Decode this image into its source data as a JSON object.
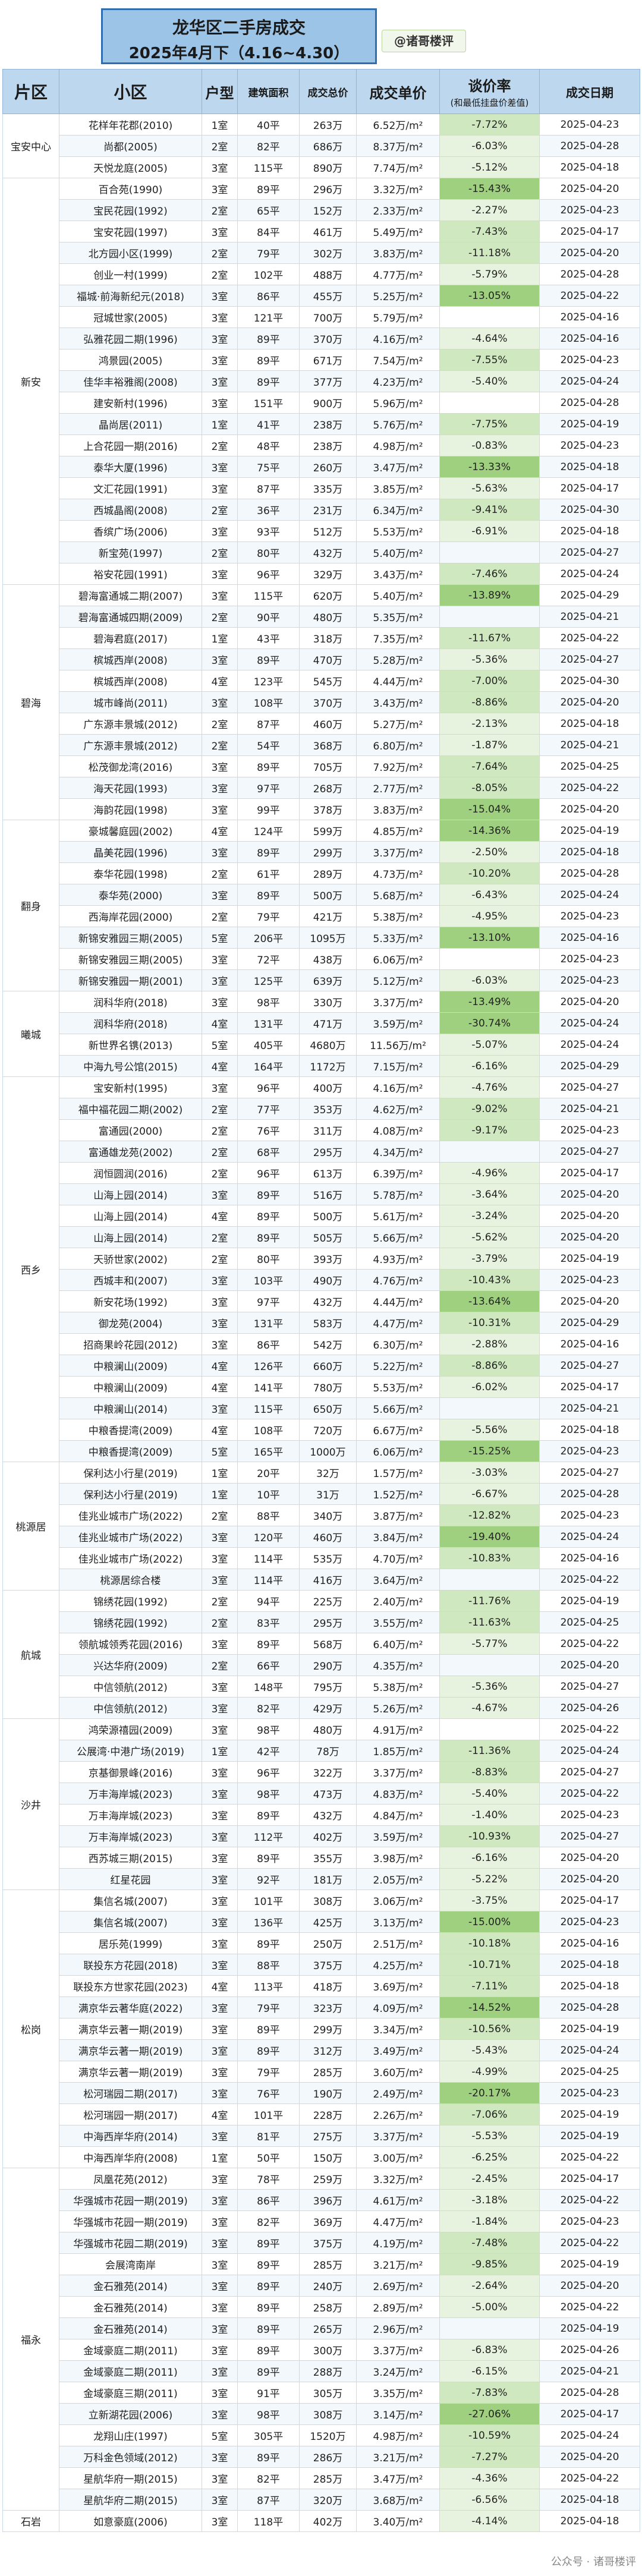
{
  "header": {
    "title": "龙华区二手房成交",
    "subtitle": "2025年4月下（4.16~4.30）",
    "author": "@诸哥楼评"
  },
  "columns": {
    "district": "片区",
    "community": "小区",
    "layout": "户型",
    "area": "建筑面积",
    "total": "成交总价",
    "unit_price": "成交单价",
    "ratio": "谈价率",
    "ratio_sub": "(和最低挂盘价差值)",
    "date": "成交日期"
  },
  "colors": {
    "header_bg": "#bcd7ee",
    "title_bg": "#9bc4e6",
    "title_border": "#2f6fae",
    "ratio_high": "#9fd07f",
    "ratio_mid": "#cfe8bf",
    "ratio_low": "#e8f3df"
  },
  "groups": [
    {
      "district": "宝安中心",
      "rows": [
        [
          "花样年花郡(2010)",
          "1室",
          "40平",
          "263万",
          "6.52万/m²",
          "-7.72%",
          "2025-04-23"
        ],
        [
          "尚都(2005)",
          "2室",
          "82平",
          "686万",
          "8.37万/m²",
          "-6.03%",
          "2025-04-28"
        ],
        [
          "天悦龙庭(2005)",
          "3室",
          "115平",
          "890万",
          "7.74万/m²",
          "-5.12%",
          "2025-04-18"
        ]
      ]
    },
    {
      "district": "新安",
      "rows": [
        [
          "百合苑(1990)",
          "3室",
          "89平",
          "296万",
          "3.32万/m²",
          "-15.43%",
          "2025-04-20"
        ],
        [
          "宝民花园(1992)",
          "2室",
          "65平",
          "152万",
          "2.33万/m²",
          "-2.27%",
          "2025-04-23"
        ],
        [
          "宝安花园(1997)",
          "3室",
          "84平",
          "461万",
          "5.49万/m²",
          "-7.43%",
          "2025-04-17"
        ],
        [
          "北方园小区(1999)",
          "2室",
          "79平",
          "302万",
          "3.83万/m²",
          "-11.18%",
          "2025-04-20"
        ],
        [
          "创业一村(1999)",
          "2室",
          "102平",
          "488万",
          "4.77万/m²",
          "-5.79%",
          "2025-04-28"
        ],
        [
          "福城·前海新纪元(2018)",
          "3室",
          "86平",
          "455万",
          "5.25万/m²",
          "-13.05%",
          "2025-04-22"
        ],
        [
          "冠城世家(2005)",
          "3室",
          "121平",
          "700万",
          "5.79万/m²",
          "",
          "2025-04-16"
        ],
        [
          "弘雅花园二期(1996)",
          "3室",
          "89平",
          "370万",
          "4.16万/m²",
          "-4.64%",
          "2025-04-16"
        ],
        [
          "鸿景园(2005)",
          "3室",
          "89平",
          "671万",
          "7.54万/m²",
          "-7.55%",
          "2025-04-23"
        ],
        [
          "佳华丰裕雅阁(2008)",
          "3室",
          "89平",
          "377万",
          "4.23万/m²",
          "-5.40%",
          "2025-04-24"
        ],
        [
          "建安新村(1996)",
          "3室",
          "151平",
          "900万",
          "5.96万/m²",
          "",
          "2025-04-28"
        ],
        [
          "晶尚居(2011)",
          "1室",
          "41平",
          "238万",
          "5.76万/m²",
          "-7.75%",
          "2025-04-19"
        ],
        [
          "上合花园一期(2016)",
          "2室",
          "48平",
          "238万",
          "4.98万/m²",
          "-0.83%",
          "2025-04-23"
        ],
        [
          "泰华大厦(1996)",
          "3室",
          "75平",
          "260万",
          "3.47万/m²",
          "-13.33%",
          "2025-04-18"
        ],
        [
          "文汇花园(1991)",
          "3室",
          "87平",
          "335万",
          "3.85万/m²",
          "-5.63%",
          "2025-04-17"
        ],
        [
          "西城晶阁(2008)",
          "2室",
          "36平",
          "231万",
          "6.34万/m²",
          "-9.41%",
          "2025-04-30"
        ],
        [
          "香缤广场(2006)",
          "3室",
          "93平",
          "512万",
          "5.53万/m²",
          "-6.91%",
          "2025-04-18"
        ],
        [
          "新宝苑(1997)",
          "2室",
          "80平",
          "432万",
          "5.40万/m²",
          "",
          "2025-04-27"
        ],
        [
          "裕安花园(1991)",
          "3室",
          "96平",
          "329万",
          "3.43万/m²",
          "-7.46%",
          "2025-04-24"
        ]
      ]
    },
    {
      "district": "碧海",
      "rows": [
        [
          "碧海富通城二期(2007)",
          "3室",
          "115平",
          "620万",
          "5.40万/m²",
          "-13.89%",
          "2025-04-29"
        ],
        [
          "碧海富通城四期(2009)",
          "2室",
          "90平",
          "480万",
          "5.35万/m²",
          "",
          "2025-04-21"
        ],
        [
          "碧海君庭(2017)",
          "1室",
          "43平",
          "318万",
          "7.35万/m²",
          "-11.67%",
          "2025-04-22"
        ],
        [
          "槟城西岸(2008)",
          "3室",
          "89平",
          "470万",
          "5.28万/m²",
          "-5.36%",
          "2025-04-27"
        ],
        [
          "槟城西岸(2008)",
          "4室",
          "123平",
          "545万",
          "4.44万/m²",
          "-7.00%",
          "2025-04-30"
        ],
        [
          "城市峰尚(2011)",
          "3室",
          "108平",
          "370万",
          "3.43万/m²",
          "-8.86%",
          "2025-04-20"
        ],
        [
          "广东源丰景城(2012)",
          "2室",
          "87平",
          "460万",
          "5.27万/m²",
          "-2.13%",
          "2025-04-18"
        ],
        [
          "广东源丰景城(2012)",
          "2室",
          "54平",
          "368万",
          "6.80万/m²",
          "-1.87%",
          "2025-04-21"
        ],
        [
          "松茂御龙湾(2016)",
          "3室",
          "89平",
          "705万",
          "7.92万/m²",
          "-7.64%",
          "2025-04-25"
        ],
        [
          "海天花园(1993)",
          "3室",
          "97平",
          "268万",
          "2.77万/m²",
          "-8.05%",
          "2025-04-22"
        ],
        [
          "海韵花园(1998)",
          "3室",
          "99平",
          "378万",
          "3.83万/m²",
          "-15.04%",
          "2025-04-20"
        ]
      ]
    },
    {
      "district": "翻身",
      "rows": [
        [
          "豪城馨庭园(2002)",
          "4室",
          "124平",
          "599万",
          "4.85万/m²",
          "-14.36%",
          "2025-04-19"
        ],
        [
          "晶美花园(1996)",
          "3室",
          "89平",
          "299万",
          "3.37万/m²",
          "-2.50%",
          "2025-04-18"
        ],
        [
          "泰华花园(1998)",
          "2室",
          "61平",
          "289万",
          "4.73万/m²",
          "-10.20%",
          "2025-04-28"
        ],
        [
          "泰华苑(2000)",
          "3室",
          "89平",
          "500万",
          "5.68万/m²",
          "-6.43%",
          "2025-04-24"
        ],
        [
          "西海岸花园(2000)",
          "2室",
          "79平",
          "421万",
          "5.38万/m²",
          "-4.95%",
          "2025-04-23"
        ],
        [
          "新锦安雅园三期(2005)",
          "5室",
          "206平",
          "1095万",
          "5.33万/m²",
          "-13.10%",
          "2025-04-16"
        ],
        [
          "新锦安雅园三期(2005)",
          "3室",
          "72平",
          "438万",
          "6.06万/m²",
          "",
          "2025-04-23"
        ],
        [
          "新锦安雅园一期(2001)",
          "3室",
          "125平",
          "639万",
          "5.12万/m²",
          "-6.03%",
          "2025-04-23"
        ]
      ]
    },
    {
      "district": "曦城",
      "rows": [
        [
          "润科华府(2018)",
          "3室",
          "98平",
          "330万",
          "3.37万/m²",
          "-13.49%",
          "2025-04-20"
        ],
        [
          "润科华府(2018)",
          "4室",
          "131平",
          "471万",
          "3.59万/m²",
          "-30.74%",
          "2025-04-24"
        ],
        [
          "新世界名镌(2013)",
          "5室",
          "405平",
          "4680万",
          "11.56万/m²",
          "-5.07%",
          "2025-04-24"
        ],
        [
          "中海九号公馆(2015)",
          "4室",
          "164平",
          "1172万",
          "7.15万/m²",
          "-6.16%",
          "2025-04-29"
        ]
      ]
    },
    {
      "district": "西乡",
      "rows": [
        [
          "宝安新村(1995)",
          "3室",
          "96平",
          "400万",
          "4.16万/m²",
          "-4.76%",
          "2025-04-27"
        ],
        [
          "福中福花园二期(2002)",
          "2室",
          "77平",
          "353万",
          "4.62万/m²",
          "-9.02%",
          "2025-04-21"
        ],
        [
          "富通园(2000)",
          "2室",
          "76平",
          "311万",
          "4.08万/m²",
          "-9.17%",
          "2025-04-23"
        ],
        [
          "富通雄龙苑(2002)",
          "2室",
          "68平",
          "295万",
          "4.34万/m²",
          "",
          "2025-04-27"
        ],
        [
          "润恒圆润(2016)",
          "2室",
          "96平",
          "613万",
          "6.39万/m²",
          "-4.96%",
          "2025-04-17"
        ],
        [
          "山海上园(2014)",
          "3室",
          "89平",
          "516万",
          "5.78万/m²",
          "-3.64%",
          "2025-04-20"
        ],
        [
          "山海上园(2014)",
          "4室",
          "89平",
          "500万",
          "5.61万/m²",
          "-3.24%",
          "2025-04-20"
        ],
        [
          "山海上园(2014)",
          "2室",
          "89平",
          "505万",
          "5.66万/m²",
          "-5.62%",
          "2025-04-20"
        ],
        [
          "天骄世家(2002)",
          "2室",
          "80平",
          "393万",
          "4.93万/m²",
          "-3.79%",
          "2025-04-19"
        ],
        [
          "西城丰和(2007)",
          "3室",
          "103平",
          "490万",
          "4.76万/m²",
          "-10.43%",
          "2025-04-23"
        ],
        [
          "新安花场(1992)",
          "3室",
          "97平",
          "432万",
          "4.44万/m²",
          "-13.64%",
          "2025-04-20"
        ],
        [
          "御龙苑(2004)",
          "3室",
          "131平",
          "583万",
          "4.47万/m²",
          "-10.31%",
          "2025-04-29"
        ],
        [
          "招商果岭花园(2012)",
          "3室",
          "86平",
          "542万",
          "6.30万/m²",
          "-2.88%",
          "2025-04-16"
        ],
        [
          "中粮澜山(2009)",
          "4室",
          "126平",
          "660万",
          "5.22万/m²",
          "-8.86%",
          "2025-04-27"
        ],
        [
          "中粮澜山(2009)",
          "4室",
          "141平",
          "780万",
          "5.53万/m²",
          "-6.02%",
          "2025-04-17"
        ],
        [
          "中粮澜山(2014)",
          "3室",
          "115平",
          "650万",
          "5.66万/m²",
          "",
          "2025-04-21"
        ],
        [
          "中粮香提湾(2009)",
          "4室",
          "108平",
          "720万",
          "6.67万/m²",
          "-5.56%",
          "2025-04-18"
        ],
        [
          "中粮香提湾(2009)",
          "5室",
          "165平",
          "1000万",
          "6.06万/m²",
          "-15.25%",
          "2025-04-23"
        ]
      ]
    },
    {
      "district": "桃源居",
      "rows": [
        [
          "保利达小行星(2019)",
          "1室",
          "20平",
          "32万",
          "1.57万/m²",
          "-3.03%",
          "2025-04-27"
        ],
        [
          "保利达小行星(2019)",
          "1室",
          "10平",
          "31万",
          "1.52万/m²",
          "-6.67%",
          "2025-04-28"
        ],
        [
          "佳兆业城市广场(2022)",
          "2室",
          "88平",
          "340万",
          "3.87万/m²",
          "-12.82%",
          "2025-04-23"
        ],
        [
          "佳兆业城市广场(2022)",
          "3室",
          "120平",
          "460万",
          "3.84万/m²",
          "-19.40%",
          "2025-04-24"
        ],
        [
          "佳兆业城市广场(2022)",
          "3室",
          "114平",
          "535万",
          "4.70万/m²",
          "-10.83%",
          "2025-04-16"
        ],
        [
          "桃源居综合楼",
          "3室",
          "114平",
          "416万",
          "3.64万/m²",
          "",
          "2025-04-22"
        ]
      ]
    },
    {
      "district": "航城",
      "rows": [
        [
          "锦绣花园(1992)",
          "2室",
          "94平",
          "225万",
          "2.40万/m²",
          "-11.76%",
          "2025-04-19"
        ],
        [
          "锦绣花园(1992)",
          "2室",
          "83平",
          "295万",
          "3.55万/m²",
          "-11.63%",
          "2025-04-25"
        ],
        [
          "领航城领秀花园(2016)",
          "3室",
          "89平",
          "568万",
          "6.40万/m²",
          "-5.77%",
          "2025-04-22"
        ],
        [
          "兴达华府(2009)",
          "2室",
          "66平",
          "290万",
          "4.35万/m²",
          "",
          "2025-04-20"
        ],
        [
          "中信领航(2012)",
          "3室",
          "148平",
          "795万",
          "5.38万/m²",
          "-5.36%",
          "2025-04-27"
        ],
        [
          "中信领航(2012)",
          "3室",
          "82平",
          "429万",
          "5.26万/m²",
          "-4.67%",
          "2025-04-26"
        ]
      ]
    },
    {
      "district": "沙井",
      "rows": [
        [
          "鸿荣源禧园(2009)",
          "3室",
          "98平",
          "480万",
          "4.91万/m²",
          "",
          "2025-04-22"
        ],
        [
          "公展湾·中港广场(2019)",
          "1室",
          "42平",
          "78万",
          "1.85万/m²",
          "-11.36%",
          "2025-04-24"
        ],
        [
          "京基御景峰(2016)",
          "3室",
          "96平",
          "322万",
          "3.37万/m²",
          "-8.83%",
          "2025-04-27"
        ],
        [
          "万丰海岸城(2023)",
          "3室",
          "98平",
          "473万",
          "4.83万/m²",
          "-5.40%",
          "2025-04-22"
        ],
        [
          "万丰海岸城(2023)",
          "3室",
          "89平",
          "432万",
          "4.84万/m²",
          "-1.40%",
          "2025-04-23"
        ],
        [
          "万丰海岸城(2023)",
          "3室",
          "112平",
          "402万",
          "3.59万/m²",
          "-10.93%",
          "2025-04-27"
        ],
        [
          "西苏城三期(2015)",
          "3室",
          "89平",
          "355万",
          "3.98万/m²",
          "-6.16%",
          "2025-04-20"
        ],
        [
          "红星花园",
          "3室",
          "92平",
          "181万",
          "2.05万/m²",
          "-5.22%",
          "2025-04-20"
        ]
      ]
    },
    {
      "district": "松岗",
      "rows": [
        [
          "集信名城(2007)",
          "3室",
          "101平",
          "308万",
          "3.06万/m²",
          "-3.75%",
          "2025-04-17"
        ],
        [
          "集信名城(2007)",
          "3室",
          "136平",
          "425万",
          "3.13万/m²",
          "-15.00%",
          "2025-04-23"
        ],
        [
          "居乐苑(1999)",
          "3室",
          "89平",
          "250万",
          "2.51万/m²",
          "-10.18%",
          "2025-04-16"
        ],
        [
          "联投东方花园(2018)",
          "3室",
          "88平",
          "375万",
          "4.25万/m²",
          "-10.71%",
          "2025-04-18"
        ],
        [
          "联投东方世家花园(2023)",
          "4室",
          "113平",
          "418万",
          "3.69万/m²",
          "-7.11%",
          "2025-04-18"
        ],
        [
          "满京华云著华庭(2022)",
          "3室",
          "79平",
          "323万",
          "4.09万/m²",
          "-14.52%",
          "2025-04-28"
        ],
        [
          "满京华云著一期(2019)",
          "3室",
          "89平",
          "299万",
          "3.34万/m²",
          "-10.56%",
          "2025-04-19"
        ],
        [
          "满京华云著一期(2019)",
          "3室",
          "89平",
          "312万",
          "3.49万/m²",
          "-5.43%",
          "2025-04-24"
        ],
        [
          "满京华云著一期(2019)",
          "3室",
          "79平",
          "285万",
          "3.60万/m²",
          "-4.99%",
          "2025-04-25"
        ],
        [
          "松河瑞园二期(2017)",
          "3室",
          "76平",
          "190万",
          "2.49万/m²",
          "-20.17%",
          "2025-04-23"
        ],
        [
          "松河瑞园一期(2017)",
          "4室",
          "101平",
          "228万",
          "2.26万/m²",
          "-7.06%",
          "2025-04-19"
        ],
        [
          "中海西岸华府(2014)",
          "3室",
          "81平",
          "275万",
          "3.37万/m²",
          "-5.53%",
          "2025-04-19"
        ],
        [
          "中海西岸华府(2008)",
          "1室",
          "50平",
          "150万",
          "3.00万/m²",
          "-6.25%",
          "2025-04-22"
        ]
      ]
    },
    {
      "district": "福永",
      "rows": [
        [
          "凤凰花苑(2012)",
          "3室",
          "78平",
          "259万",
          "3.32万/m²",
          "-2.45%",
          "2025-04-17"
        ],
        [
          "华强城市花园一期(2019)",
          "3室",
          "86平",
          "396万",
          "4.61万/m²",
          "-3.18%",
          "2025-04-22"
        ],
        [
          "华强城市花园一期(2019)",
          "3室",
          "82平",
          "369万",
          "4.47万/m²",
          "-1.84%",
          "2025-04-23"
        ],
        [
          "华强城市花园二期(2019)",
          "3室",
          "89平",
          "375万",
          "4.19万/m²",
          "-7.48%",
          "2025-04-22"
        ],
        [
          "会展湾南岸",
          "3室",
          "89平",
          "285万",
          "3.21万/m²",
          "-9.85%",
          "2025-04-19"
        ],
        [
          "金石雅苑(2014)",
          "3室",
          "89平",
          "240万",
          "2.69万/m²",
          "-2.64%",
          "2025-04-20"
        ],
        [
          "金石雅苑(2014)",
          "3室",
          "89平",
          "258万",
          "2.89万/m²",
          "-5.00%",
          "2025-04-22"
        ],
        [
          "金石雅苑(2014)",
          "3室",
          "89平",
          "265万",
          "2.96万/m²",
          "",
          "2025-04-19"
        ],
        [
          "金域豪庭二期(2011)",
          "3室",
          "89平",
          "300万",
          "3.37万/m²",
          "-6.83%",
          "2025-04-26"
        ],
        [
          "金域豪庭二期(2011)",
          "3室",
          "89平",
          "288万",
          "3.24万/m²",
          "-6.15%",
          "2025-04-21"
        ],
        [
          "金域豪庭三期(2011)",
          "3室",
          "91平",
          "305万",
          "3.35万/m²",
          "-7.83%",
          "2025-04-28"
        ],
        [
          "立新湖花园(2006)",
          "3室",
          "98平",
          "308万",
          "3.14万/m²",
          "-27.06%",
          "2025-04-17"
        ],
        [
          "龙翔山庄(1997)",
          "5室",
          "305平",
          "1520万",
          "4.98万/m²",
          "-10.59%",
          "2025-04-24"
        ],
        [
          "万科金色领域(2012)",
          "3室",
          "89平",
          "286万",
          "3.21万/m²",
          "-7.27%",
          "2025-04-20"
        ],
        [
          "星航华府一期(2015)",
          "3室",
          "82平",
          "285万",
          "3.47万/m²",
          "-4.36%",
          "2025-04-22"
        ],
        [
          "星航华府二期(2015)",
          "3室",
          "87平",
          "320万",
          "3.68万/m²",
          "-6.56%",
          "2025-04-18"
        ]
      ]
    },
    {
      "district": "石岩",
      "rows": [
        [
          "如意豪庭(2006)",
          "3室",
          "118平",
          "402万",
          "3.40万/m²",
          "-4.14%",
          "2025-04-18"
        ]
      ]
    }
  ],
  "footer": {
    "watermark": "公众号 · 诸哥楼评"
  }
}
